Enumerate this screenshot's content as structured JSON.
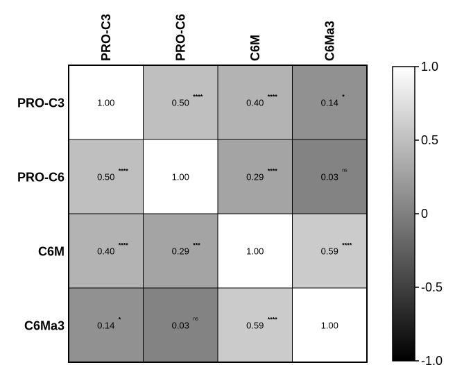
{
  "chart_data": {
    "type": "heatmap",
    "rows": [
      "PRO-C3",
      "PRO-C6",
      "C6M",
      "C6Ma3"
    ],
    "columns": [
      "PRO-C3",
      "PRO-C6",
      "C6M",
      "C6Ma3"
    ],
    "values": [
      [
        1.0,
        0.5,
        0.4,
        0.14
      ],
      [
        0.5,
        1.0,
        0.29,
        0.03
      ],
      [
        0.4,
        0.29,
        1.0,
        0.59
      ],
      [
        0.14,
        0.03,
        0.59,
        1.0
      ]
    ],
    "value_labels": [
      [
        "1.00",
        "0.50",
        "0.40",
        "0.14"
      ],
      [
        "0.50",
        "1.00",
        "0.29",
        "0.03"
      ],
      [
        "0.40",
        "0.29",
        "1.00",
        "0.59"
      ],
      [
        "0.14",
        "0.03",
        "0.59",
        "1.00"
      ]
    ],
    "significance": [
      [
        "",
        "****",
        "****",
        "*"
      ],
      [
        "****",
        "",
        "****",
        "ns"
      ],
      [
        "****",
        "***",
        "",
        "****"
      ],
      [
        "*",
        "ns",
        "****",
        ""
      ]
    ],
    "colorbar": {
      "range": [
        -1.0,
        1.0
      ],
      "ticks": [
        1.0,
        0.5,
        0,
        -0.5,
        -1.0
      ],
      "tick_labels": [
        "1.0",
        "0.5",
        "0",
        "-0.5",
        "-1.0"
      ],
      "low_color": "#000000",
      "high_color": "#ffffff"
    }
  }
}
